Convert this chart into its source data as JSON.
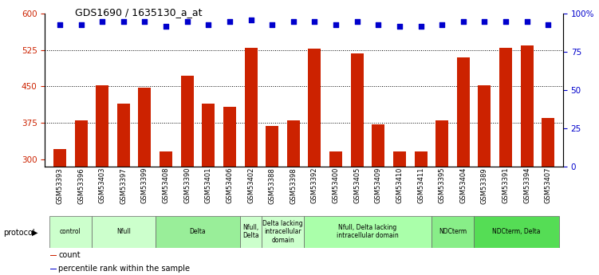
{
  "title": "GDS1690 / 1635130_a_at",
  "samples": [
    "GSM53393",
    "GSM53396",
    "GSM53403",
    "GSM53397",
    "GSM53399",
    "GSM53408",
    "GSM53390",
    "GSM53401",
    "GSM53406",
    "GSM53402",
    "GSM53388",
    "GSM53398",
    "GSM53392",
    "GSM53400",
    "GSM53405",
    "GSM53409",
    "GSM53410",
    "GSM53411",
    "GSM53395",
    "GSM53404",
    "GSM53389",
    "GSM53391",
    "GSM53394",
    "GSM53407"
  ],
  "counts": [
    320,
    380,
    452,
    415,
    448,
    315,
    472,
    415,
    408,
    530,
    368,
    380,
    528,
    315,
    518,
    372,
    315,
    315,
    380,
    510,
    452,
    530,
    535,
    385
  ],
  "percentiles": [
    93,
    93,
    95,
    95,
    95,
    92,
    95,
    93,
    95,
    96,
    93,
    95,
    95,
    93,
    95,
    93,
    92,
    92,
    93,
    95,
    95,
    95,
    95,
    93
  ],
  "ylim_left": [
    285,
    600
  ],
  "ylim_right": [
    0,
    100
  ],
  "yticks_left": [
    300,
    375,
    450,
    525,
    600
  ],
  "yticks_right": [
    0,
    25,
    50,
    75,
    100
  ],
  "bar_color": "#cc2200",
  "dot_color": "#0000cc",
  "bg_color": "#ffffff",
  "plot_bg": "#ffffff",
  "grid_color": "#000000",
  "protocol_groups": [
    {
      "label": "control",
      "start": 0,
      "end": 2,
      "color": "#ccffcc"
    },
    {
      "label": "Nfull",
      "start": 2,
      "end": 5,
      "color": "#ccffcc"
    },
    {
      "label": "Delta",
      "start": 5,
      "end": 9,
      "color": "#99ee99"
    },
    {
      "label": "Nfull,\nDelta",
      "start": 9,
      "end": 10,
      "color": "#ccffcc"
    },
    {
      "label": "Delta lacking\nintracellular\ndomain",
      "start": 10,
      "end": 12,
      "color": "#ccffcc"
    },
    {
      "label": "Nfull, Delta lacking\nintracellular domain",
      "start": 12,
      "end": 18,
      "color": "#aaffaa"
    },
    {
      "label": "NDCterm",
      "start": 18,
      "end": 20,
      "color": "#88ee88"
    },
    {
      "label": "NDCterm, Delta",
      "start": 20,
      "end": 24,
      "color": "#55dd55"
    }
  ],
  "protocol_label": "protocol",
  "legend_items": [
    {
      "color": "#cc2200",
      "label": "count"
    },
    {
      "color": "#0000cc",
      "label": "percentile rank within the sample"
    }
  ],
  "gridlines": [
    375,
    450,
    525
  ]
}
